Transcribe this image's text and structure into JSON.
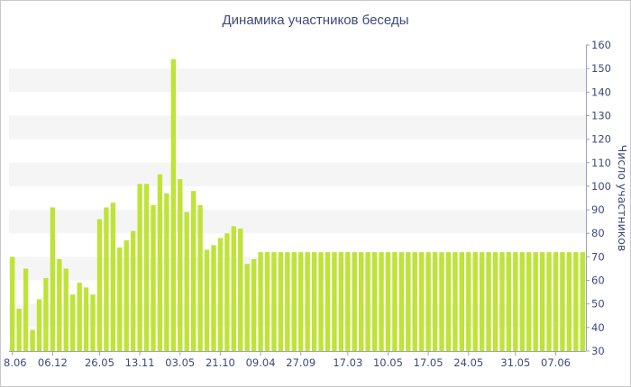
{
  "chart_data": {
    "type": "bar",
    "title": "Динамика участников беседы",
    "ylabel": "Число участников",
    "xlabel": "",
    "ylim": [
      30,
      160
    ],
    "yticks": [
      30,
      40,
      50,
      60,
      70,
      80,
      90,
      100,
      110,
      120,
      130,
      140,
      150,
      160
    ],
    "bar_color": "#bfe337",
    "band_color": "#f5f5f5",
    "axis_color": "#3e4a7a",
    "x_tick_labels": [
      "8.06",
      "06.12",
      "26.05",
      "13.11",
      "03.05",
      "21.10",
      "09.04",
      "27.09",
      "17.03",
      "10.05",
      "17.05",
      "24.05",
      "31.05",
      "07.06"
    ],
    "x_tick_positions": [
      0,
      6,
      13,
      19,
      25,
      31,
      37,
      43,
      50,
      56,
      62,
      68,
      75,
      81
    ],
    "values": [
      70,
      48,
      65,
      39,
      52,
      61,
      91,
      69,
      65,
      54,
      59,
      57,
      54,
      86,
      91,
      93,
      74,
      77,
      81,
      101,
      101,
      92,
      105,
      97,
      154,
      103,
      89,
      98,
      92,
      73,
      75,
      78,
      80,
      83,
      82,
      67,
      69,
      72,
      72,
      72,
      72,
      72,
      72,
      72,
      72,
      72,
      72,
      72,
      72,
      72,
      72,
      72,
      72,
      72,
      72,
      72,
      72,
      72,
      72,
      72,
      72,
      72,
      72,
      72,
      72,
      72,
      72,
      72,
      72,
      72,
      72,
      72,
      72,
      72,
      72,
      72,
      72,
      72,
      72,
      72,
      72,
      72,
      72,
      72,
      72,
      72
    ]
  }
}
